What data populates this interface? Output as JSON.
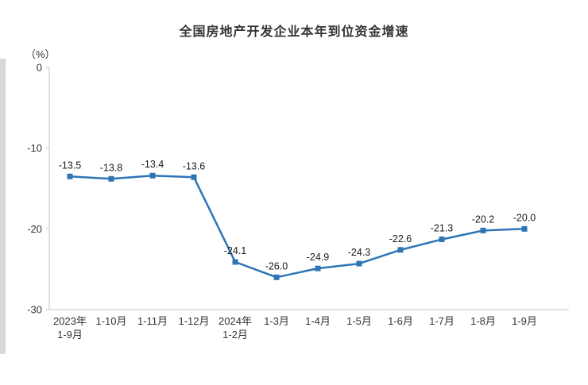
{
  "chart_data": {
    "type": "line",
    "title": "全国房地产开发企业本年到位资金增速",
    "unit_label": "（%）",
    "categories": [
      [
        "2023年",
        "1-9月"
      ],
      [
        "1-10月"
      ],
      [
        "1-11月"
      ],
      [
        "1-12月"
      ],
      [
        "2024年",
        "1-2月"
      ],
      [
        "1-3月"
      ],
      [
        "1-4月"
      ],
      [
        "1-5月"
      ],
      [
        "1-6月"
      ],
      [
        "1-7月"
      ],
      [
        "1-8月"
      ],
      [
        "1-9月"
      ]
    ],
    "values": [
      -13.5,
      -13.8,
      -13.4,
      -13.6,
      -24.1,
      -26.0,
      -24.9,
      -24.3,
      -22.6,
      -21.3,
      -20.2,
      -20.0
    ],
    "data_labels": [
      "-13.5",
      "-13.8",
      "-13.4",
      "-13.6",
      "-24.1",
      "-26.0",
      "-24.9",
      "-24.3",
      "-22.6",
      "-21.3",
      "-20.2",
      "-20.0"
    ],
    "ylim": [
      -30,
      0
    ],
    "yticks": [
      0,
      -10,
      -20,
      -30
    ],
    "grid": false,
    "legend": "none",
    "line_color": "#2e75b6",
    "marker": "square",
    "axis_color": "#c6c6c6",
    "text_color": "#333333"
  }
}
